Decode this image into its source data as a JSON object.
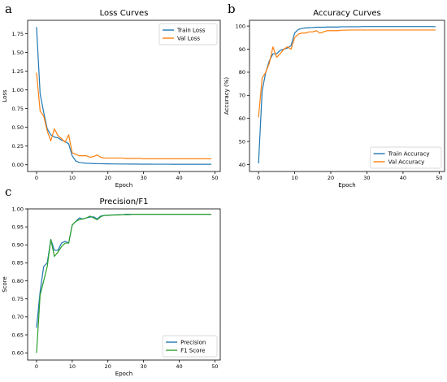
{
  "figure": {
    "panels": [
      {
        "id": "a",
        "letter": "a"
      },
      {
        "id": "b",
        "letter": "b"
      },
      {
        "id": "c",
        "letter": "c"
      }
    ]
  },
  "colors": {
    "blue": "#1f77b4",
    "orange": "#ff7f0e",
    "green": "#2ca02c"
  },
  "chart_data": [
    {
      "type": "line",
      "title": "Loss Curves",
      "xlabel": "Epoch",
      "ylabel": "Loss",
      "xlim": [
        -2.5,
        51.5
      ],
      "ylim": [
        -0.09,
        1.93
      ],
      "xticks": [
        0,
        10,
        20,
        30,
        40,
        50
      ],
      "yticks": [
        0.0,
        0.25,
        0.5,
        0.75,
        1.0,
        1.25,
        1.5,
        1.75
      ],
      "ytick_labels": [
        "0.00",
        "0.25",
        "0.50",
        "0.75",
        "1.00",
        "1.25",
        "1.50",
        "1.75"
      ],
      "grid": false,
      "legend": "top-right",
      "x": [
        0,
        1,
        2,
        3,
        4,
        5,
        6,
        7,
        8,
        9,
        10,
        11,
        12,
        13,
        14,
        15,
        16,
        17,
        18,
        19,
        20,
        21,
        22,
        23,
        24,
        25,
        26,
        27,
        28,
        29,
        30,
        31,
        32,
        33,
        34,
        35,
        36,
        37,
        38,
        39,
        40,
        41,
        42,
        43,
        44,
        45,
        46,
        47,
        48,
        49
      ],
      "series": [
        {
          "name": "Train Loss",
          "color": "#1f77b4",
          "values": [
            1.84,
            0.95,
            0.7,
            0.48,
            0.4,
            0.37,
            0.36,
            0.33,
            0.31,
            0.28,
            0.12,
            0.05,
            0.03,
            0.025,
            0.02,
            0.018,
            0.016,
            0.015,
            0.014,
            0.013,
            0.012,
            0.011,
            0.011,
            0.01,
            0.01,
            0.01,
            0.009,
            0.009,
            0.009,
            0.008,
            0.008,
            0.008,
            0.008,
            0.007,
            0.007,
            0.007,
            0.007,
            0.007,
            0.006,
            0.006,
            0.006,
            0.006,
            0.006,
            0.006,
            0.006,
            0.006,
            0.006,
            0.006,
            0.006,
            0.006
          ]
        },
        {
          "name": "Val Loss",
          "color": "#ff7f0e",
          "values": [
            1.23,
            0.72,
            0.65,
            0.45,
            0.32,
            0.48,
            0.39,
            0.35,
            0.3,
            0.4,
            0.16,
            0.14,
            0.12,
            0.12,
            0.12,
            0.1,
            0.11,
            0.13,
            0.1,
            0.09,
            0.09,
            0.09,
            0.09,
            0.09,
            0.09,
            0.085,
            0.085,
            0.085,
            0.085,
            0.085,
            0.08,
            0.08,
            0.08,
            0.08,
            0.08,
            0.08,
            0.08,
            0.08,
            0.08,
            0.08,
            0.08,
            0.08,
            0.08,
            0.08,
            0.08,
            0.08,
            0.08,
            0.08,
            0.08,
            0.08
          ]
        }
      ]
    },
    {
      "type": "line",
      "title": "Accuracy Curves",
      "xlabel": "Epoch",
      "ylabel": "Accuracy (%)",
      "xlim": [
        -2.5,
        51.5
      ],
      "ylim": [
        37.0,
        102.5
      ],
      "xticks": [
        0,
        10,
        20,
        30,
        40,
        50
      ],
      "yticks": [
        40,
        50,
        60,
        70,
        80,
        90,
        100
      ],
      "ytick_labels": [
        "40",
        "50",
        "60",
        "70",
        "80",
        "90",
        "100"
      ],
      "grid": false,
      "legend": "bottom-right",
      "x": [
        0,
        1,
        2,
        3,
        4,
        5,
        6,
        7,
        8,
        9,
        10,
        11,
        12,
        13,
        14,
        15,
        16,
        17,
        18,
        19,
        20,
        21,
        22,
        23,
        24,
        25,
        26,
        27,
        28,
        29,
        30,
        31,
        32,
        33,
        34,
        35,
        36,
        37,
        38,
        39,
        40,
        41,
        42,
        43,
        44,
        45,
        46,
        47,
        48,
        49
      ],
      "series": [
        {
          "name": "Train Accuracy",
          "color": "#1f77b4",
          "values": [
            40.5,
            72,
            80,
            85,
            88,
            88,
            89.5,
            90,
            90.5,
            91.5,
            97,
            98.5,
            99,
            99.2,
            99.3,
            99.4,
            99.5,
            99.5,
            99.5,
            99.6,
            99.6,
            99.6,
            99.6,
            99.7,
            99.7,
            99.7,
            99.7,
            99.7,
            99.7,
            99.8,
            99.8,
            99.8,
            99.8,
            99.8,
            99.8,
            99.8,
            99.8,
            99.8,
            99.8,
            99.8,
            99.8,
            99.8,
            99.8,
            99.8,
            99.8,
            99.8,
            99.8,
            99.8,
            99.8,
            99.7
          ]
        },
        {
          "name": "Val Accuracy",
          "color": "#ff7f0e",
          "values": [
            60.5,
            77.5,
            80,
            84,
            91,
            86.5,
            88,
            90,
            91,
            90,
            95,
            96.5,
            97,
            97,
            97.5,
            97.5,
            98,
            97,
            97.5,
            98,
            98,
            98,
            98,
            98.2,
            98.2,
            98.3,
            98.3,
            98.3,
            98.3,
            98.3,
            98.3,
            98.3,
            98.3,
            98.3,
            98.3,
            98.3,
            98.3,
            98.3,
            98.3,
            98.3,
            98.3,
            98.3,
            98.3,
            98.3,
            98.3,
            98.3,
            98.3,
            98.3,
            98.3,
            98.3
          ]
        }
      ]
    },
    {
      "type": "line",
      "title": "Precision/F1",
      "xlabel": "Epoch",
      "ylabel": "Score",
      "xlim": [
        -2.5,
        51.5
      ],
      "ylim": [
        0.58,
        1.0
      ],
      "xticks": [
        0,
        10,
        20,
        30,
        40,
        50
      ],
      "yticks": [
        0.6,
        0.65,
        0.7,
        0.75,
        0.8,
        0.85,
        0.9,
        0.95,
        1.0
      ],
      "ytick_labels": [
        "0.60",
        "0.65",
        "0.70",
        "0.75",
        "0.80",
        "0.85",
        "0.90",
        "0.95",
        "1.00"
      ],
      "grid": false,
      "legend": "bottom-right",
      "x": [
        0,
        1,
        2,
        3,
        4,
        5,
        6,
        7,
        8,
        9,
        10,
        11,
        12,
        13,
        14,
        15,
        16,
        17,
        18,
        19,
        20,
        21,
        22,
        23,
        24,
        25,
        26,
        27,
        28,
        29,
        30,
        31,
        32,
        33,
        34,
        35,
        36,
        37,
        38,
        39,
        40,
        41,
        42,
        43,
        44,
        45,
        46,
        47,
        48,
        49
      ],
      "series": [
        {
          "name": "Precision",
          "color": "#1f77b4",
          "values": [
            0.67,
            0.77,
            0.84,
            0.85,
            0.915,
            0.885,
            0.885,
            0.905,
            0.91,
            0.905,
            0.955,
            0.965,
            0.975,
            0.972,
            0.975,
            0.977,
            0.978,
            0.972,
            0.98,
            0.982,
            0.982,
            0.983,
            0.983,
            0.984,
            0.984,
            0.985,
            0.985,
            0.985,
            0.985,
            0.985,
            0.985,
            0.985,
            0.985,
            0.985,
            0.985,
            0.985,
            0.985,
            0.985,
            0.985,
            0.985,
            0.985,
            0.985,
            0.985,
            0.985,
            0.985,
            0.985,
            0.985,
            0.985,
            0.985,
            0.985
          ]
        },
        {
          "name": "F1 Score",
          "color": "#2ca02c",
          "values": [
            0.6,
            0.76,
            0.8,
            0.84,
            0.915,
            0.868,
            0.88,
            0.895,
            0.905,
            0.905,
            0.955,
            0.965,
            0.97,
            0.972,
            0.975,
            0.98,
            0.975,
            0.97,
            0.978,
            0.982,
            0.982,
            0.983,
            0.983,
            0.983,
            0.984,
            0.984,
            0.984,
            0.985,
            0.985,
            0.985,
            0.985,
            0.985,
            0.985,
            0.985,
            0.985,
            0.985,
            0.985,
            0.985,
            0.985,
            0.985,
            0.985,
            0.985,
            0.985,
            0.985,
            0.985,
            0.985,
            0.985,
            0.985,
            0.985,
            0.985
          ]
        }
      ]
    }
  ]
}
